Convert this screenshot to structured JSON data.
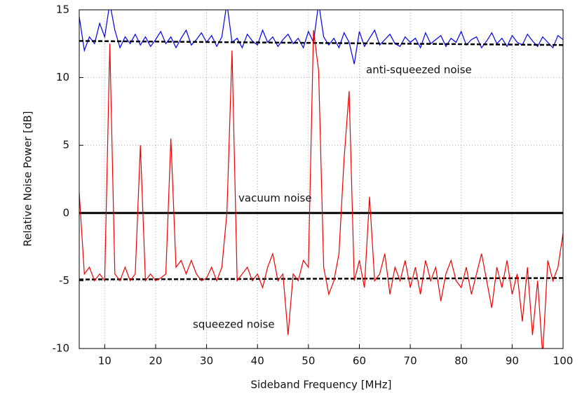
{
  "chart_data": {
    "type": "line",
    "xlabel": "Sideband Frequency [MHz]",
    "ylabel": "Relative Noise Power [dB]",
    "xlim": [
      5,
      100
    ],
    "ylim": [
      -10,
      15
    ],
    "xticks": [
      10,
      20,
      30,
      40,
      50,
      60,
      70,
      80,
      90,
      100
    ],
    "yticks": [
      -10,
      -5,
      0,
      5,
      10,
      15
    ],
    "grid": true,
    "series": [
      {
        "name": "anti-squeezed noise",
        "color": "#0000ee",
        "x": [
          5,
          6,
          7,
          8,
          9,
          10,
          11,
          12,
          13,
          14,
          15,
          16,
          17,
          18,
          19,
          20,
          21,
          22,
          23,
          24,
          25,
          26,
          27,
          28,
          29,
          30,
          31,
          32,
          33,
          34,
          35,
          36,
          37,
          38,
          39,
          40,
          41,
          42,
          43,
          44,
          45,
          46,
          47,
          48,
          49,
          50,
          51,
          52,
          53,
          54,
          55,
          56,
          57,
          58,
          59,
          60,
          61,
          62,
          63,
          64,
          65,
          66,
          67,
          68,
          69,
          70,
          71,
          72,
          73,
          74,
          75,
          76,
          77,
          78,
          79,
          80,
          81,
          82,
          83,
          84,
          85,
          86,
          87,
          88,
          89,
          90,
          91,
          92,
          93,
          94,
          95,
          96,
          97,
          98,
          99,
          100
        ],
        "values": [
          14.5,
          12,
          13,
          12.5,
          14,
          13,
          15.5,
          13.5,
          12.2,
          13,
          12.5,
          13.2,
          12.4,
          13,
          12.3,
          12.8,
          13.4,
          12.5,
          13,
          12.2,
          12.9,
          13.5,
          12.4,
          12.8,
          13.3,
          12.6,
          13.1,
          12.3,
          13,
          15.5,
          12.6,
          12.9,
          12.2,
          13.2,
          12.7,
          12.4,
          13.5,
          12.6,
          13,
          12.3,
          12.8,
          13.2,
          12.5,
          12.9,
          12.2,
          13.4,
          12.6,
          15.5,
          13,
          12.4,
          12.9,
          12.2,
          13.3,
          12.6,
          11,
          13.4,
          12.3,
          12.9,
          13.5,
          12.4,
          12.8,
          13.2,
          12.5,
          12.3,
          13,
          12.6,
          12.9,
          12.2,
          13.3,
          12.5,
          12.8,
          13.1,
          12.3,
          12.9,
          12.6,
          13.4,
          12.4,
          12.8,
          13,
          12.2,
          12.7,
          13.3,
          12.5,
          12.9,
          12.3,
          13.1,
          12.6,
          12.4,
          13.2,
          12.7,
          12.3,
          13,
          12.6,
          12.2,
          13.1,
          12.8
        ]
      },
      {
        "color": "#000000",
        "style": "dashed",
        "x": [
          5,
          100
        ],
        "values": [
          12.7,
          12.4
        ]
      },
      {
        "name": "vacuum noise",
        "color": "#000000",
        "x": [
          5,
          100
        ],
        "values": [
          0,
          0
        ]
      },
      {
        "color": "#000000",
        "style": "dashed",
        "x": [
          5,
          100
        ],
        "values": [
          -4.9,
          -4.8
        ]
      },
      {
        "name": "squeezed noise",
        "color": "#ee0000",
        "x": [
          5,
          6,
          7,
          8,
          9,
          10,
          11,
          12,
          13,
          14,
          15,
          16,
          17,
          18,
          19,
          20,
          21,
          22,
          23,
          24,
          25,
          26,
          27,
          28,
          29,
          30,
          31,
          32,
          33,
          34,
          35,
          36,
          37,
          38,
          39,
          40,
          41,
          42,
          43,
          44,
          45,
          46,
          47,
          48,
          49,
          50,
          51,
          52,
          53,
          54,
          55,
          56,
          57,
          58,
          59,
          60,
          61,
          62,
          63,
          64,
          65,
          66,
          67,
          68,
          69,
          70,
          71,
          72,
          73,
          74,
          75,
          76,
          77,
          78,
          79,
          80,
          81,
          82,
          83,
          84,
          85,
          86,
          87,
          88,
          89,
          90,
          91,
          92,
          93,
          94,
          95,
          96,
          97,
          98,
          99,
          100
        ],
        "values": [
          1.5,
          -4.5,
          -4,
          -5,
          -4.5,
          -5,
          12.5,
          -4.5,
          -5,
          -4,
          -5,
          -4.5,
          5,
          -5,
          -4.5,
          -5,
          -4.8,
          -4.5,
          5.5,
          -4,
          -3.5,
          -4.5,
          -3.5,
          -4.5,
          -5,
          -4.8,
          -4,
          -5,
          -4,
          0,
          12,
          -5,
          -4.5,
          -4,
          -5,
          -4.5,
          -5.5,
          -4,
          -3,
          -5,
          -4.5,
          -9,
          -4.5,
          -5,
          -3.5,
          -4,
          13.5,
          10.5,
          -4,
          -6,
          -5,
          -3,
          4,
          9,
          -5,
          -3.5,
          -5.5,
          1.2,
          -5,
          -4.5,
          -3,
          -6,
          -4,
          -5,
          -3.5,
          -5.5,
          -4,
          -6,
          -3.5,
          -5,
          -4,
          -6.5,
          -4.5,
          -3.5,
          -5,
          -5.5,
          -4,
          -6,
          -4.5,
          -3,
          -5,
          -7,
          -4,
          -5.5,
          -3.5,
          -6,
          -4.5,
          -8,
          -4,
          -9,
          -5,
          -10.5,
          -3.5,
          -5,
          -4,
          -1.5
        ]
      }
    ]
  }
}
